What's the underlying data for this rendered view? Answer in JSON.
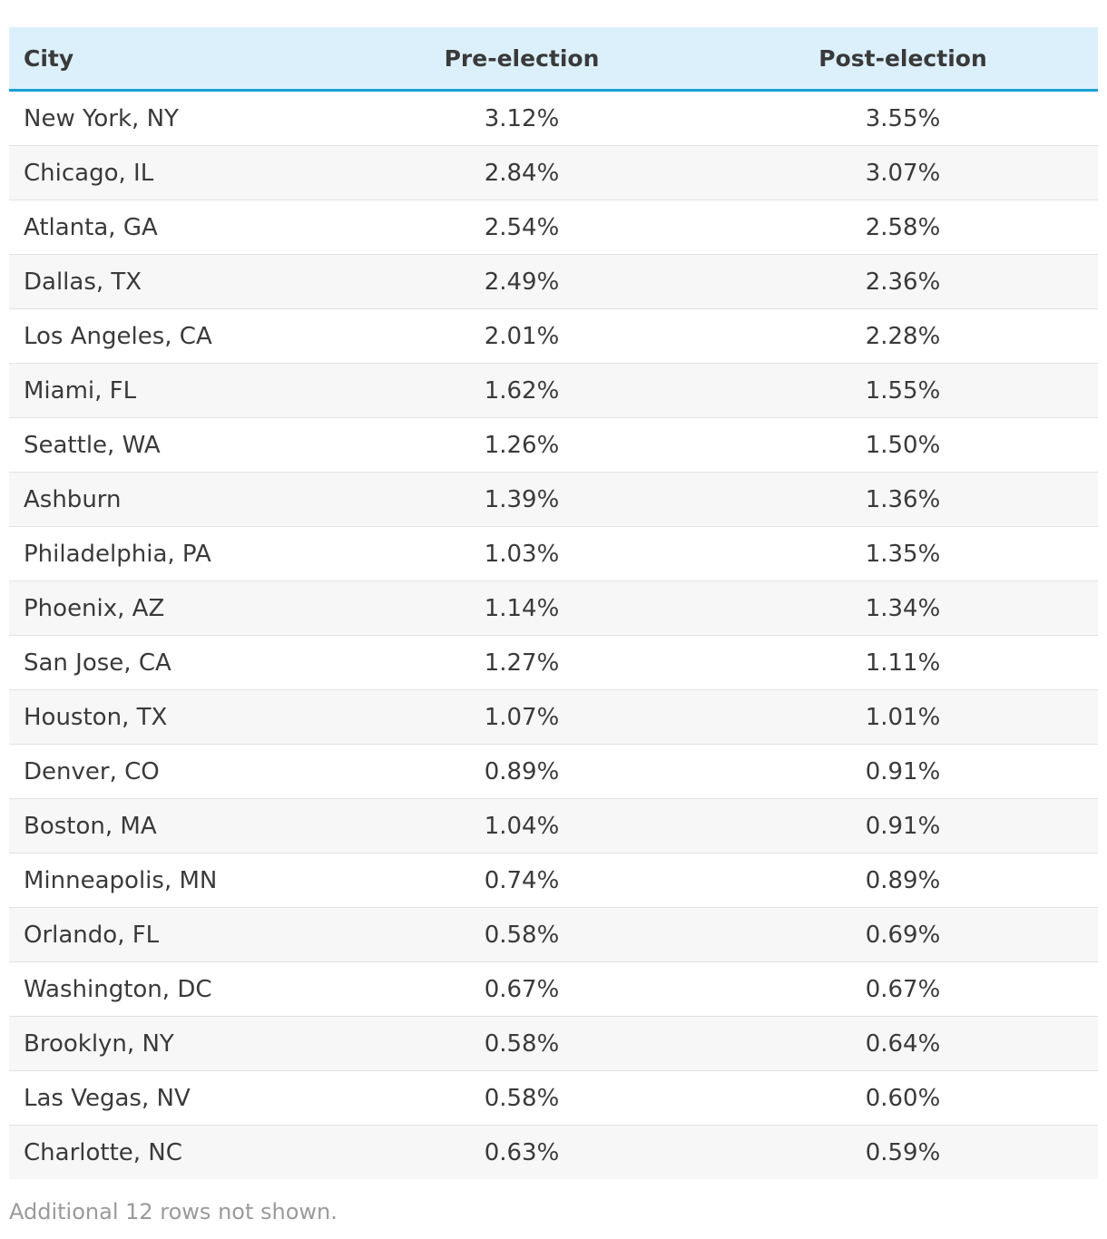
{
  "chart_data": {
    "type": "table",
    "columns": [
      "City",
      "Pre-election",
      "Post-election"
    ],
    "rows": [
      [
        "New York, NY",
        "3.12%",
        "3.55%"
      ],
      [
        "Chicago, IL",
        "2.84%",
        "3.07%"
      ],
      [
        "Atlanta, GA",
        "2.54%",
        "2.58%"
      ],
      [
        "Dallas, TX",
        "2.49%",
        "2.36%"
      ],
      [
        "Los Angeles, CA",
        "2.01%",
        "2.28%"
      ],
      [
        "Miami, FL",
        "1.62%",
        "1.55%"
      ],
      [
        "Seattle, WA",
        "1.26%",
        "1.50%"
      ],
      [
        "Ashburn",
        "1.39%",
        "1.36%"
      ],
      [
        "Philadelphia, PA",
        "1.03%",
        "1.35%"
      ],
      [
        "Phoenix, AZ",
        "1.14%",
        "1.34%"
      ],
      [
        "San Jose, CA",
        "1.27%",
        "1.11%"
      ],
      [
        "Houston, TX",
        "1.07%",
        "1.01%"
      ],
      [
        "Denver, CO",
        "0.89%",
        "0.91%"
      ],
      [
        "Boston, MA",
        "1.04%",
        "0.91%"
      ],
      [
        "Minneapolis, MN",
        "0.74%",
        "0.89%"
      ],
      [
        "Orlando, FL",
        "0.58%",
        "0.69%"
      ],
      [
        "Washington, DC",
        "0.67%",
        "0.67%"
      ],
      [
        "Brooklyn, NY",
        "0.58%",
        "0.64%"
      ],
      [
        "Las Vegas, NV",
        "0.58%",
        "0.60%"
      ],
      [
        "Charlotte, NC",
        "0.63%",
        "0.59%"
      ]
    ],
    "note": "Additional 12 rows not shown."
  },
  "colors": {
    "header_background": "#dcf0fc",
    "header_rule": "#1a9fd9",
    "stripe_background": "#f7f7f7",
    "note_text": "#9a9a9a"
  }
}
